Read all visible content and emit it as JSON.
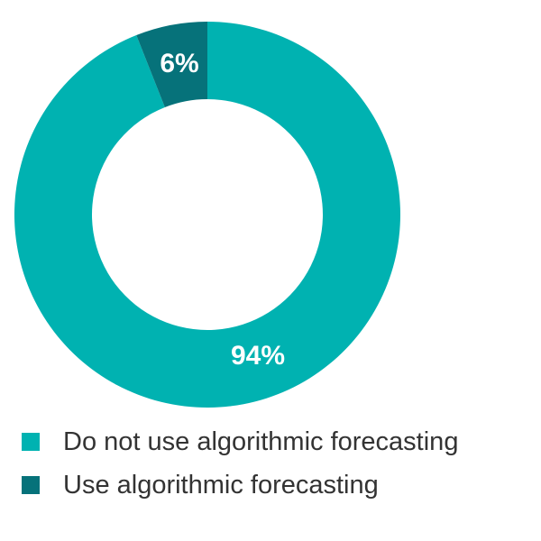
{
  "chart_data": {
    "type": "pie",
    "variant": "donut",
    "title": "",
    "categories": [
      "Do not use algorithmic forecasting",
      "Use algorithmic forecasting"
    ],
    "values": [
      94,
      6
    ],
    "value_labels": [
      "94%",
      "6%"
    ],
    "colors": [
      "#00b2b1",
      "#06727a"
    ],
    "legend": {
      "position": "bottom-left",
      "entries": [
        {
          "label": "Do not use algorithmic forecasting",
          "color": "#00b2b1"
        },
        {
          "label": "Use algorithmic forecasting",
          "color": "#06727a"
        }
      ]
    }
  }
}
